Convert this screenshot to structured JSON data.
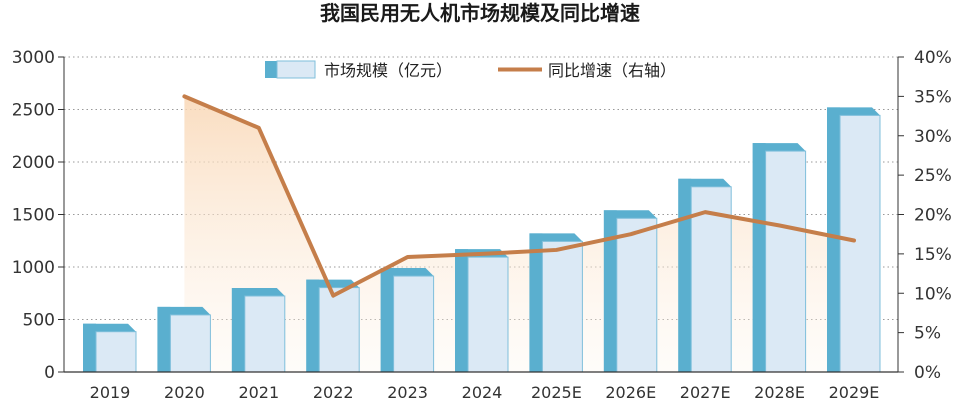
{
  "chart_data": {
    "type": "bar",
    "title": "我国民用无人机市场规模及同比增速",
    "categories": [
      "2019",
      "2020",
      "2021",
      "2022",
      "2023",
      "2024",
      "2025E",
      "2026E",
      "2027E",
      "2028E",
      "2029E"
    ],
    "series": [
      {
        "name": "市场规模（亿元）",
        "type": "bar",
        "axis": "left",
        "values": [
          460,
          620,
          800,
          880,
          990,
          1170,
          1320,
          1540,
          1840,
          2180,
          2520
        ]
      },
      {
        "name": "同比增速（右轴）",
        "type": "line",
        "axis": "right",
        "values": [
          null,
          35,
          31,
          9.7,
          14.6,
          15,
          15.5,
          17.5,
          20.3,
          18.6,
          16.7
        ]
      }
    ],
    "y_left": {
      "min": 0,
      "max": 3000,
      "ticks": [
        "0",
        "500",
        "1000",
        "1500",
        "2000",
        "2500",
        "3000"
      ]
    },
    "y_right": {
      "min": 0,
      "max": 40,
      "ticks": [
        "0%",
        "5%",
        "10%",
        "15%",
        "20%",
        "25%",
        "30%",
        "35%",
        "40%"
      ]
    },
    "grid": "horizontal-dotted",
    "legend_position": "top-center",
    "colors": {
      "bar_side": "#5aafcf",
      "bar_front": "#dbe9f5",
      "bar_front_border": "#7fbfdb",
      "line": "#c57e4a",
      "area_top": "#f9dcc0"
    }
  }
}
